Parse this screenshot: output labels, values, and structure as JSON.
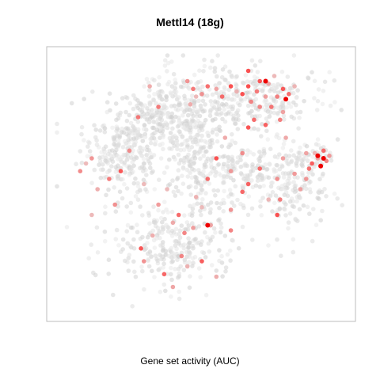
{
  "chart_data": {
    "type": "scatter",
    "title": "Mettl14 (18g)",
    "xlabel": "Gene set activity (AUC)",
    "ylabel": "",
    "xlim": [
      0,
      100
    ],
    "ylim": [
      0,
      100
    ],
    "grid": false,
    "legend": "none",
    "color_scale": {
      "low": "#e0e0e0",
      "high": "#ee0000"
    },
    "cluster_points": {
      "note": "",
      "clusters": [
        {
          "name": "",
          "center": [
            23,
            63
          ],
          "spread": [
            7,
            9
          ],
          "count": 260
        },
        {
          "name": "",
          "center": [
            35,
            76
          ],
          "spread": [
            9,
            7
          ],
          "count": 220
        },
        {
          "name": "",
          "center": [
            47,
            60
          ],
          "spread": [
            5,
            11
          ],
          "count": 140
        },
        {
          "name": "",
          "center": [
            62,
            54
          ],
          "spread": [
            10,
            8
          ],
          "count": 220
        },
        {
          "name": "",
          "center": [
            40,
            26
          ],
          "spread": [
            11,
            8
          ],
          "count": 260
        },
        {
          "name": "",
          "center": [
            50,
            80
          ],
          "spread": [
            8,
            9
          ],
          "count": 160
        },
        {
          "name": "",
          "center": [
            72,
            83
          ],
          "spread": [
            10,
            6
          ],
          "count": 200
        },
        {
          "name": "",
          "center": [
            82,
            50
          ],
          "spread": [
            6,
            10
          ],
          "count": 150
        },
        {
          "name": "",
          "center": [
            89,
            60
          ],
          "spread": [
            3,
            3
          ],
          "count": 40
        }
      ]
    },
    "highlights": [
      [
        45,
        90
      ],
      [
        47,
        87
      ],
      [
        48,
        84
      ],
      [
        46,
        81
      ],
      [
        50,
        85
      ],
      [
        52,
        88
      ],
      [
        55,
        87
      ],
      [
        57,
        84
      ],
      [
        60,
        88
      ],
      [
        62,
        86
      ],
      [
        64,
        85
      ],
      [
        66,
        88
      ],
      [
        67,
        82
      ],
      [
        69,
        86
      ],
      [
        70,
        90
      ],
      [
        72,
        84
      ],
      [
        74,
        80
      ],
      [
        76,
        84
      ],
      [
        78,
        87
      ],
      [
        75,
        92
      ],
      [
        73,
        89
      ],
      [
        70,
        80
      ],
      [
        68,
        75
      ],
      [
        66,
        72
      ],
      [
        72,
        73
      ],
      [
        77,
        75
      ],
      [
        80,
        85
      ],
      [
        82,
        88
      ],
      [
        66,
        94
      ],
      [
        78,
        78
      ],
      [
        32,
        88
      ],
      [
        35,
        80
      ],
      [
        28,
        76
      ],
      [
        10,
        58
      ],
      [
        18,
        52
      ],
      [
        22,
        55
      ],
      [
        25,
        63
      ],
      [
        12,
        38
      ],
      [
        14,
        48
      ],
      [
        30,
        50
      ],
      [
        38,
        48
      ],
      [
        35,
        42
      ],
      [
        42,
        38
      ],
      [
        47,
        33
      ],
      [
        53,
        34
      ],
      [
        50,
        41
      ],
      [
        48,
        45
      ],
      [
        52,
        52
      ],
      [
        55,
        60
      ],
      [
        58,
        68
      ],
      [
        60,
        55
      ],
      [
        64,
        47
      ],
      [
        66,
        50
      ],
      [
        70,
        56
      ],
      [
        73,
        44
      ],
      [
        76,
        38
      ],
      [
        78,
        60
      ],
      [
        82,
        54
      ],
      [
        84,
        48
      ],
      [
        86,
        62
      ],
      [
        88,
        58
      ],
      [
        90,
        60
      ],
      [
        91,
        57
      ],
      [
        93,
        59
      ],
      [
        94,
        61
      ],
      [
        89,
        62
      ],
      [
        92,
        63
      ],
      [
        87,
        56
      ],
      [
        86,
        52
      ],
      [
        76,
        52
      ],
      [
        79,
        68
      ],
      [
        77,
        44
      ],
      [
        53,
        34
      ],
      [
        40,
        35
      ],
      [
        33,
        30
      ],
      [
        29,
        25
      ],
      [
        37,
        15
      ],
      [
        40,
        10
      ],
      [
        45,
        18
      ],
      [
        50,
        20
      ],
      [
        55,
        14
      ],
      [
        30,
        20
      ],
      [
        43,
        22
      ],
      [
        60,
        40
      ],
      [
        64,
        62
      ],
      [
        12,
        60
      ],
      [
        8,
        55
      ],
      [
        20,
        42
      ],
      [
        44,
        31
      ],
      [
        60,
        32
      ]
    ],
    "strong_highlights": [
      [
        52,
        34
      ],
      [
        72,
        90
      ],
      [
        79,
        83
      ],
      [
        90,
        61
      ],
      [
        92,
        60
      ],
      [
        91,
        57
      ]
    ]
  }
}
